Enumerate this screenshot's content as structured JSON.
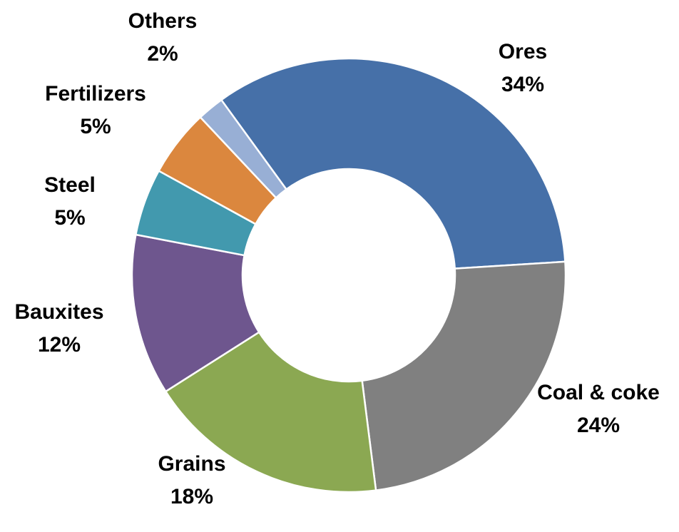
{
  "chart_data": {
    "type": "pie",
    "donut": true,
    "start_angle_deg": -36,
    "direction": "clockwise",
    "slices": [
      {
        "label": "Ores",
        "value": 34,
        "value_label": "34%",
        "color": "#4670A8"
      },
      {
        "label": "Coal & coke",
        "value": 24,
        "value_label": "24%",
        "color": "#808080"
      },
      {
        "label": "Grains",
        "value": 18,
        "value_label": "18%",
        "color": "#8BA852"
      },
      {
        "label": "Bauxites",
        "value": 12,
        "value_label": "12%",
        "color": "#6E568E"
      },
      {
        "label": "Steel",
        "value": 5,
        "value_label": "5%",
        "color": "#4299AE"
      },
      {
        "label": "Fertilizers",
        "value": 5,
        "value_label": "5%",
        "color": "#DB873E"
      },
      {
        "label": "Others",
        "value": 2,
        "value_label": "2%",
        "color": "#98AFD5"
      }
    ],
    "title": "",
    "legend": "none"
  }
}
